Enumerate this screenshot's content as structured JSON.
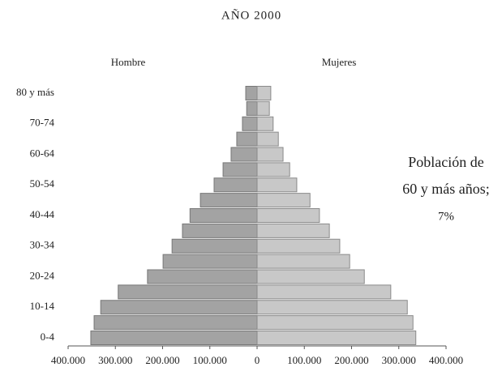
{
  "chart_data": {
    "type": "pyramid",
    "title": "AÑO 2000",
    "categories": [
      "0-4",
      null,
      "10-14",
      null,
      "20-24",
      null,
      "30-34",
      null,
      "40-44",
      null,
      "50-54",
      null,
      "60-64",
      null,
      "70-74",
      null,
      "80 y más"
    ],
    "series": [
      {
        "name": "Hombre",
        "color": "#a3a3a3",
        "values": [
          352000,
          345000,
          331000,
          294000,
          232000,
          199000,
          180000,
          158000,
          142000,
          120000,
          91000,
          72000,
          55000,
          43000,
          31000,
          22000,
          24000
        ]
      },
      {
        "name": "Mujeres",
        "color": "#c8c8c8",
        "values": [
          336000,
          330000,
          318000,
          283000,
          227000,
          196000,
          175000,
          153000,
          132000,
          112000,
          84000,
          69000,
          55000,
          45000,
          34000,
          26000,
          29000
        ]
      }
    ],
    "xlim": [
      -400000,
      400000
    ],
    "xticks": [
      {
        "value": -400000,
        "label": "400.000"
      },
      {
        "value": -300000,
        "label": "300.000"
      },
      {
        "value": -200000,
        "label": "200.000"
      },
      {
        "value": -100000,
        "label": "100.000"
      },
      0,
      {
        "value": 100000,
        "label": "100.000"
      },
      {
        "value": 200000,
        "label": "200.000"
      },
      {
        "value": 300000,
        "label": "300.000"
      },
      {
        "value": 400000,
        "label": "400.000"
      }
    ],
    "annotation": [
      "Población de",
      "60 y más años;",
      "7%"
    ]
  }
}
